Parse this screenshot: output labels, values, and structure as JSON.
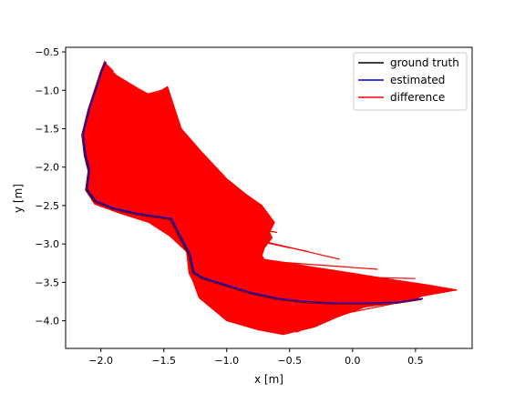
{
  "chart_data": {
    "type": "line",
    "xlabel": "x [m]",
    "ylabel": "y [m]",
    "xlim": [
      -2.28,
      0.95
    ],
    "ylim": [
      -4.36,
      -0.44
    ],
    "x_ticks": [
      -2.0,
      -1.5,
      -1.0,
      -0.5,
      0.0,
      0.5
    ],
    "x_tick_labels": [
      "−2.0",
      "−1.5",
      "−1.0",
      "−0.5",
      "0.0",
      "0.5"
    ],
    "y_ticks": [
      -0.5,
      -1.0,
      -1.5,
      -2.0,
      -2.5,
      -3.0,
      -3.5,
      -4.0
    ],
    "y_tick_labels": [
      "−0.5",
      "−1.0",
      "−1.5",
      "−2.0",
      "−2.5",
      "−3.0",
      "−3.5",
      "−4.0"
    ],
    "grid": false,
    "legend_placement": "top-right",
    "series": [
      {
        "name": "ground truth",
        "color": "#000000",
        "x": [
          -1.97,
          -2.0,
          -2.05,
          -2.1,
          -2.15,
          -2.13,
          -2.1,
          -2.12,
          -2.05,
          -1.9,
          -1.7,
          -1.45,
          -1.3,
          -1.27,
          -1.2,
          -1.0,
          -0.8,
          -0.6,
          -0.4,
          -0.15,
          0.1,
          0.35,
          0.55
        ],
        "y": [
          -0.64,
          -0.75,
          -1.0,
          -1.25,
          -1.58,
          -1.85,
          -2.05,
          -2.3,
          -2.45,
          -2.55,
          -2.62,
          -2.68,
          -3.15,
          -3.38,
          -3.45,
          -3.55,
          -3.65,
          -3.72,
          -3.76,
          -3.78,
          -3.78,
          -3.77,
          -3.72
        ]
      },
      {
        "name": "estimated",
        "color": "#0000cc",
        "x": [
          -1.96,
          -1.99,
          -2.04,
          -2.09,
          -2.14,
          -2.12,
          -2.09,
          -2.11,
          -2.04,
          -1.89,
          -1.69,
          -1.44,
          -1.29,
          -1.26,
          -1.19,
          -0.99,
          -0.79,
          -0.59,
          -0.39,
          -0.14,
          0.11,
          0.36,
          0.56
        ],
        "y": [
          -0.63,
          -0.74,
          -0.99,
          -1.24,
          -1.57,
          -1.84,
          -2.04,
          -2.29,
          -2.44,
          -2.54,
          -2.61,
          -2.67,
          -3.14,
          -3.37,
          -3.44,
          -3.54,
          -3.64,
          -3.71,
          -3.75,
          -3.77,
          -3.77,
          -3.76,
          -3.71
        ]
      },
      {
        "name": "difference",
        "color": "#ff0000",
        "region_x": [
          -1.97,
          -1.95,
          -1.88,
          -1.7,
          -1.62,
          -1.55,
          -1.47,
          -1.36,
          -1.2,
          -1.0,
          -0.85,
          -0.72,
          -0.62,
          -0.66,
          -0.64,
          -0.7,
          -0.72,
          -0.7,
          -0.5,
          -0.32,
          0.0,
          0.3,
          0.55,
          0.66,
          0.83,
          0.62,
          0.55,
          0.5,
          0.3,
          0.1,
          0.0,
          -0.12,
          -0.3,
          -0.55,
          -0.75,
          -1.0,
          -1.22,
          -1.27,
          -1.3,
          -1.32,
          -1.45,
          -1.62,
          -1.85,
          -2.05,
          -2.12,
          -2.1,
          -2.13,
          -2.15,
          -2.1,
          -2.05,
          -2.0
        ],
        "region_y": [
          -0.62,
          -0.68,
          -0.8,
          -0.98,
          -1.05,
          -1.03,
          -0.95,
          -1.5,
          -1.8,
          -2.15,
          -2.35,
          -2.5,
          -2.72,
          -2.85,
          -2.92,
          -3.05,
          -3.15,
          -3.2,
          -3.25,
          -3.3,
          -3.38,
          -3.46,
          -3.52,
          -3.55,
          -3.6,
          -3.66,
          -3.68,
          -3.72,
          -3.78,
          -3.82,
          -3.88,
          -3.95,
          -4.08,
          -4.18,
          -4.12,
          -4.0,
          -3.7,
          -3.48,
          -3.38,
          -3.1,
          -2.9,
          -2.72,
          -2.6,
          -2.48,
          -2.3,
          -2.05,
          -1.85,
          -1.58,
          -1.25,
          -1.0,
          -0.75
        ],
        "gt_x": [
          -1.97,
          -2.0,
          -2.05,
          -2.1,
          -2.15,
          -2.13,
          -2.1,
          -2.12,
          -2.05,
          -1.9,
          -1.7,
          -1.45,
          -1.3,
          -1.27,
          -1.2,
          -1.0,
          -0.8,
          -0.6,
          -0.4,
          -0.15,
          0.1,
          0.35,
          0.55
        ],
        "gt_y": [
          -0.64,
          -0.75,
          -1.0,
          -1.25,
          -1.58,
          -1.85,
          -2.05,
          -2.3,
          -2.45,
          -2.55,
          -2.62,
          -2.68,
          -3.15,
          -3.38,
          -3.45,
          -3.55,
          -3.65,
          -3.72,
          -3.76,
          -3.78,
          -3.78,
          -3.77,
          -3.72
        ],
        "est_x": [
          -1.9,
          -1.8,
          -1.62,
          -1.52,
          -1.4,
          -1.22,
          -1.0,
          -0.75,
          -0.6,
          -0.5,
          -0.35,
          -0.1,
          0.2,
          0.5,
          0.83,
          0.6,
          0.3,
          0.05,
          -0.25,
          -0.35,
          -0.45,
          -0.6,
          -0.75
        ],
        "est_y": [
          -0.75,
          -0.9,
          -1.05,
          -1.0,
          -1.6,
          -1.85,
          -2.2,
          -2.55,
          -2.85,
          -3.05,
          -3.1,
          -3.2,
          -3.33,
          -3.45,
          -3.6,
          -3.65,
          -3.72,
          -3.85,
          -4.0,
          -4.1,
          -4.15,
          -4.08,
          -4.0
        ]
      }
    ]
  }
}
